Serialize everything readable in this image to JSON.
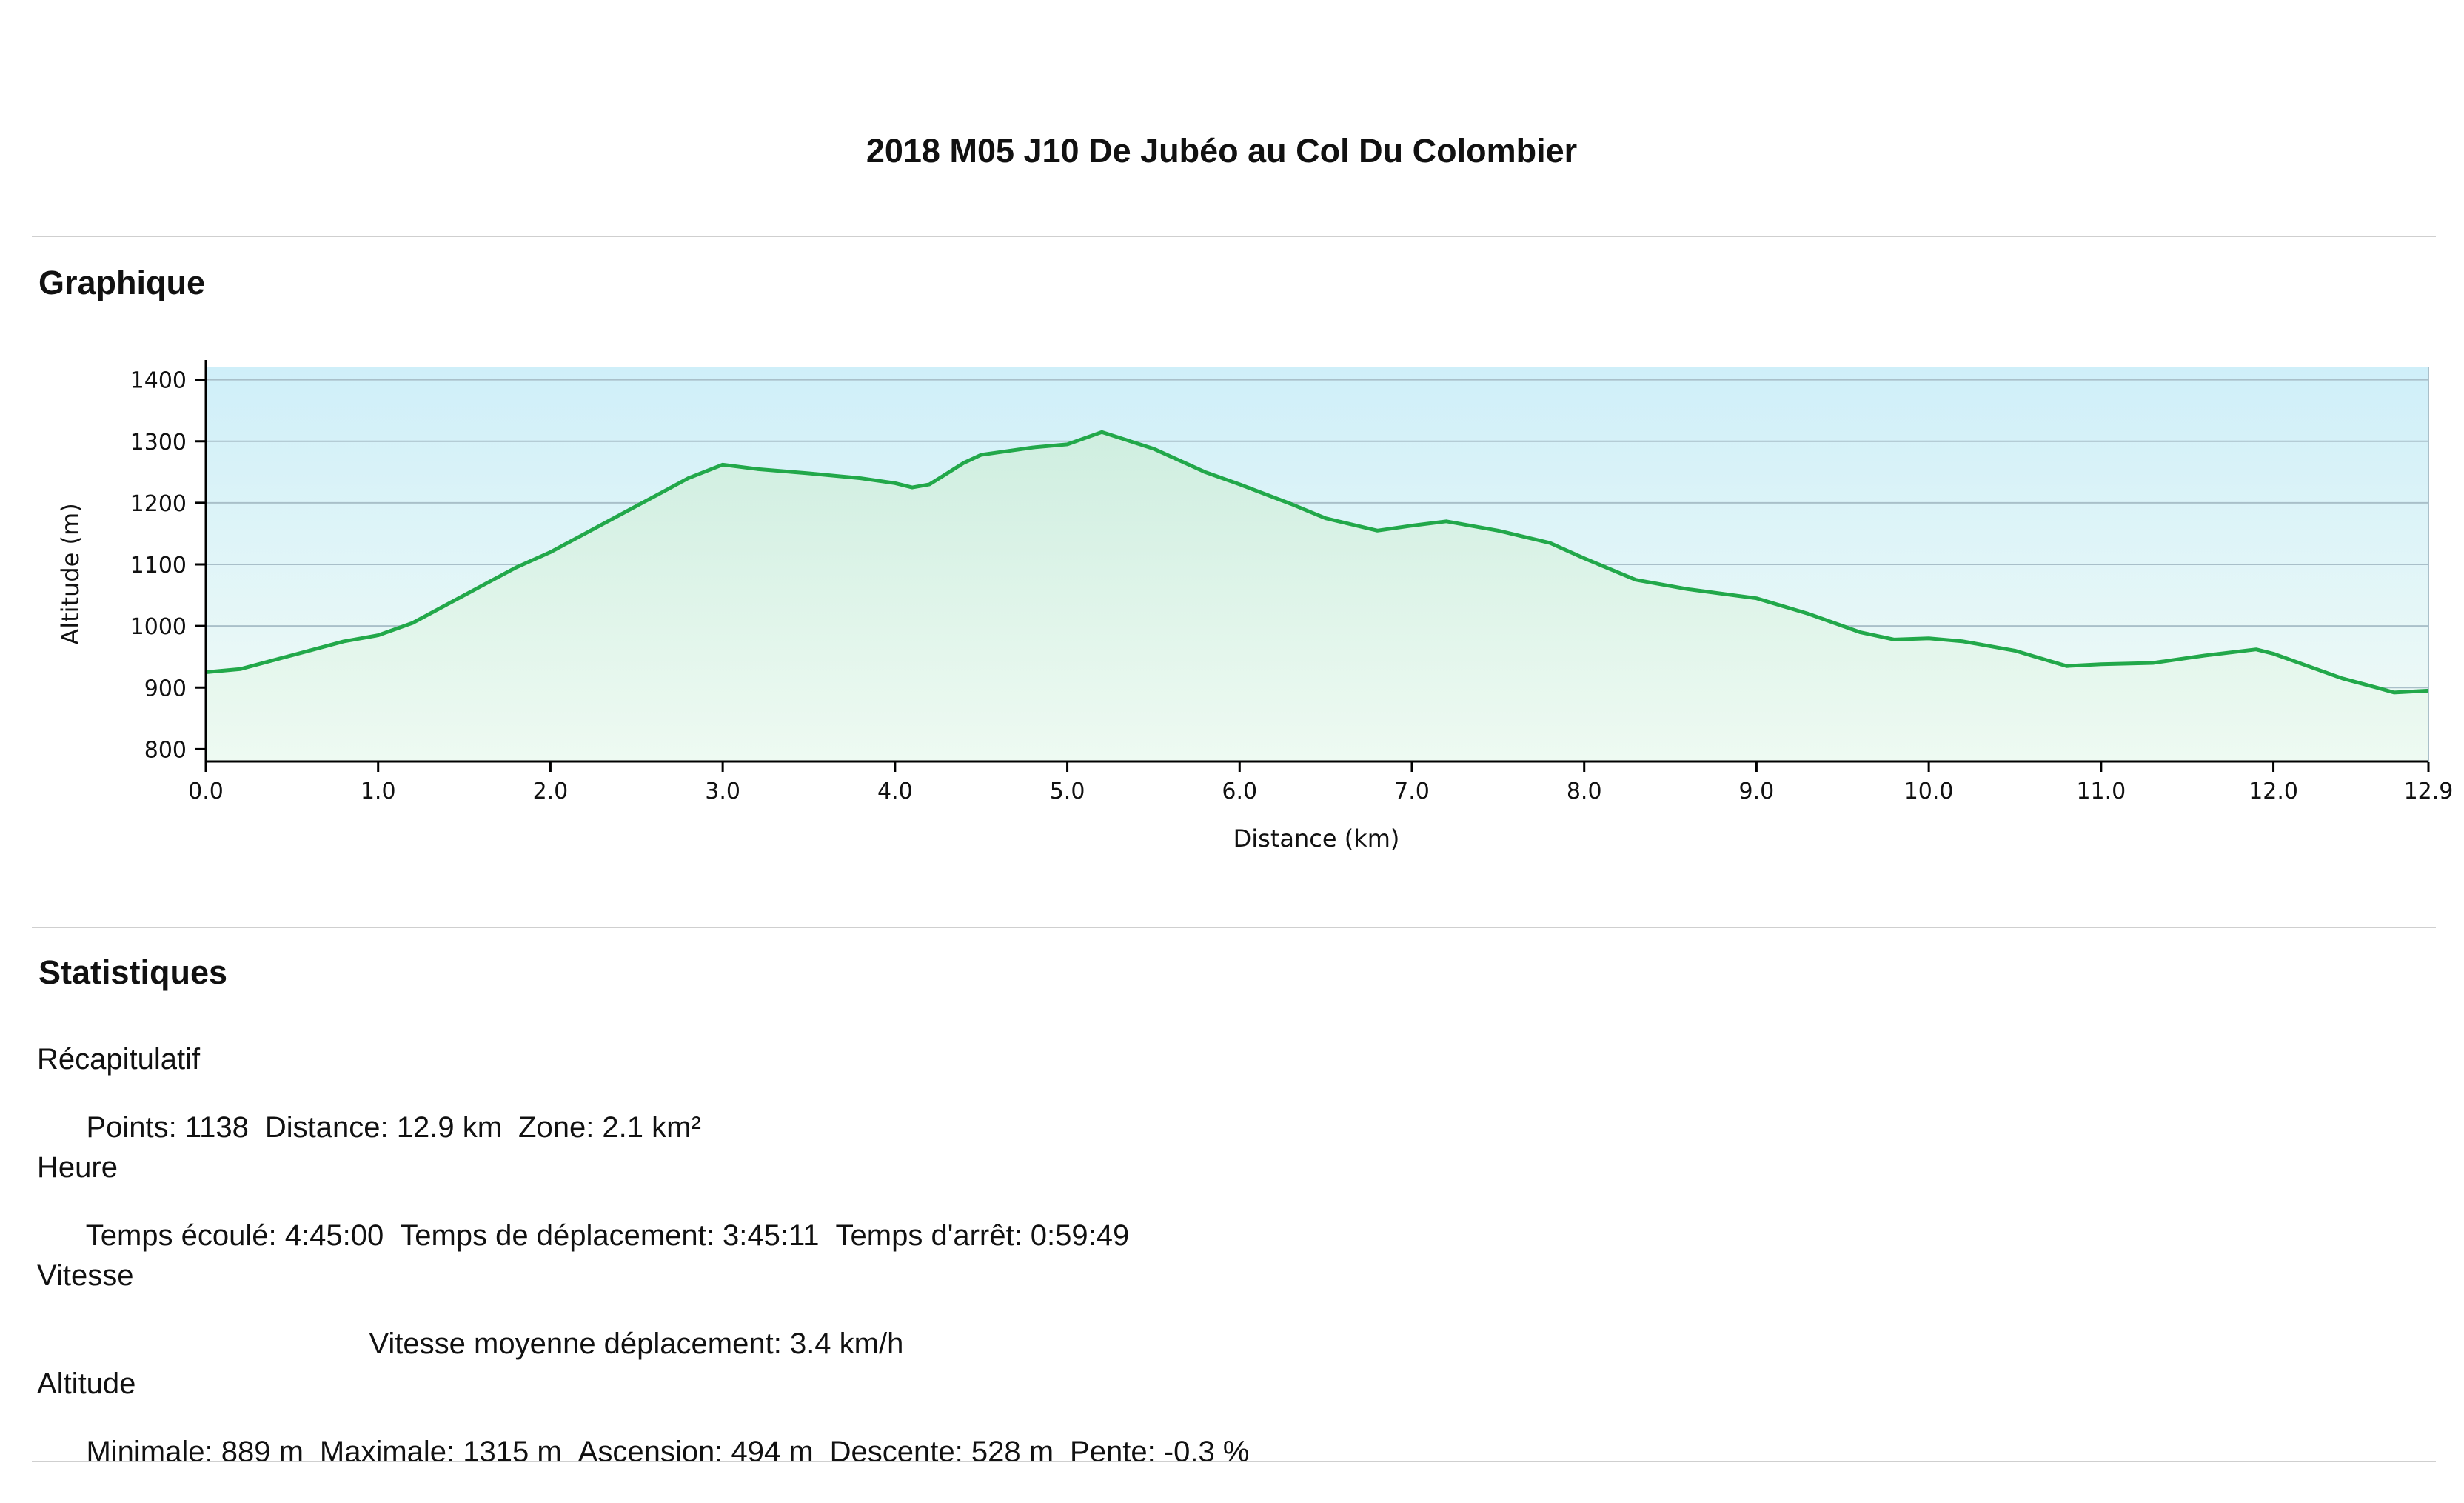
{
  "title": "2018 M05 J10 De  Jubéo au Col Du Colombier",
  "sections": {
    "graph": "Graphique",
    "stats": "Statistiques"
  },
  "stats": {
    "recap": {
      "label": "Récapitulatif",
      "points": "Points: 1138",
      "distance": "Distance: 12.9 km",
      "zone": "Zone: 2.1 km²"
    },
    "time": {
      "label": "Heure",
      "elapsed": "Temps écoulé: 4:45:00",
      "moving": "Temps de déplacement: 3:45:11",
      "stopped": "Temps d'arrêt: 0:59:49"
    },
    "speed": {
      "label": "Vitesse",
      "moving_avg": "Vitesse moyenne déplacement: 3.4 km/h"
    },
    "altitude": {
      "label": "Altitude",
      "min": "Minimale: 889 m",
      "max": "Maximale: 1315 m",
      "ascent": "Ascension: 494 m",
      "descent": "Descente: 528 m",
      "slope": "Pente: -0.3 %"
    }
  },
  "chart_data": {
    "type": "area",
    "xlabel": "Distance   (km)",
    "ylabel": "Altitude (m)",
    "xlim": [
      0,
      12.9
    ],
    "ylim": [
      780,
      1420
    ],
    "x_ticks": [
      "0.0",
      "1.0",
      "2.0",
      "3.0",
      "4.0",
      "5.0",
      "6.0",
      "7.0",
      "8.0",
      "9.0",
      "10.0",
      "11.0",
      "12.0",
      "12.9"
    ],
    "x_tick_values": [
      0,
      1,
      2,
      3,
      4,
      5,
      6,
      7,
      8,
      9,
      10,
      11,
      12,
      12.9
    ],
    "y_ticks": [
      "800",
      "900",
      "1000",
      "1100",
      "1200",
      "1300",
      "1400"
    ],
    "y_tick_values": [
      800,
      900,
      1000,
      1100,
      1200,
      1300,
      1400
    ],
    "grid": true,
    "line_color": "#22a84a",
    "series": [
      {
        "x": [
          0,
          0.2,
          0.4,
          0.6,
          0.8,
          1.0,
          1.2,
          1.4,
          1.6,
          1.8,
          2.0,
          2.2,
          2.4,
          2.6,
          2.8,
          3.0,
          3.2,
          3.5,
          3.8,
          4.0,
          4.1,
          4.2,
          4.4,
          4.5,
          4.6,
          4.8,
          5.0,
          5.2,
          5.5,
          5.8,
          6.0,
          6.3,
          6.5,
          6.8,
          7.0,
          7.2,
          7.5,
          7.8,
          8.0,
          8.3,
          8.6,
          9.0,
          9.3,
          9.6,
          9.8,
          10.0,
          10.2,
          10.5,
          10.8,
          11.0,
          11.3,
          11.6,
          11.9,
          12.0,
          12.2,
          12.4,
          12.6,
          12.7,
          12.9
        ],
        "y": [
          925,
          930,
          945,
          960,
          975,
          985,
          1005,
          1035,
          1065,
          1095,
          1120,
          1150,
          1180,
          1210,
          1240,
          1262,
          1255,
          1248,
          1240,
          1232,
          1225,
          1230,
          1265,
          1278,
          1282,
          1290,
          1295,
          1315,
          1288,
          1250,
          1230,
          1198,
          1175,
          1155,
          1163,
          1170,
          1155,
          1135,
          1110,
          1075,
          1060,
          1045,
          1020,
          990,
          978,
          980,
          975,
          960,
          935,
          938,
          940,
          952,
          962,
          955,
          935,
          915,
          900,
          892,
          895
        ]
      }
    ]
  }
}
